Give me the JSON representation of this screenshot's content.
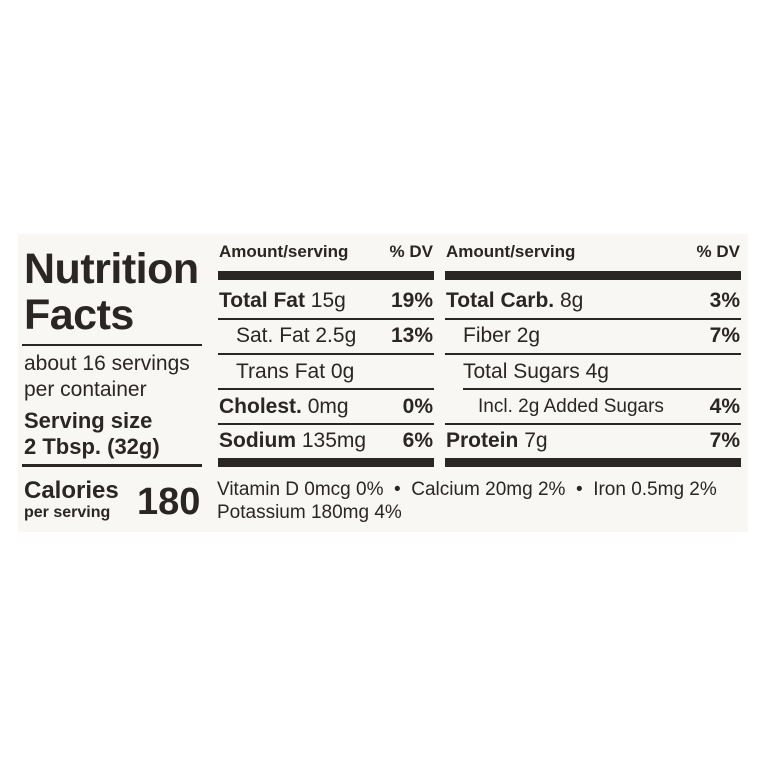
{
  "title_line1": "Nutrition",
  "title_line2": "Facts",
  "servings_line1": "about 16 servings",
  "servings_line2": "per container",
  "serving_size_label": "Serving size",
  "serving_size_value": "2 Tbsp. (32g)",
  "calories_label": "Calories",
  "calories_sub": "per serving",
  "calories_value": "180",
  "left_col": {
    "header_amount": "Amount/serving",
    "header_dv": "% DV",
    "rows": [
      {
        "name": "Total Fat",
        "amount": "15g",
        "dv": "19%"
      },
      {
        "name": "Sat. Fat",
        "amount": "2.5g",
        "dv": "13%"
      },
      {
        "name": "Trans Fat",
        "amount": "0g",
        "dv": ""
      },
      {
        "name": "Cholest.",
        "amount": "0mg",
        "dv": "0%"
      },
      {
        "name": "Sodium",
        "amount": "135mg",
        "dv": "6%"
      }
    ]
  },
  "right_col": {
    "header_amount": "Amount/serving",
    "header_dv": "% DV",
    "rows": [
      {
        "name": "Total Carb.",
        "amount": "8g",
        "dv": "3%"
      },
      {
        "name": "Fiber",
        "amount": "2g",
        "dv": "7%"
      },
      {
        "name": "Total Sugars",
        "amount": "4g",
        "dv": ""
      },
      {
        "name": "Incl. 2g Added Sugars",
        "amount": "",
        "dv": "4%"
      },
      {
        "name": "Protein",
        "amount": "7g",
        "dv": "7%"
      }
    ]
  },
  "vitamins_line1": "Vitamin D 0mcg 0%  •  Calcium 20mg 2%  •  Iron 0.5mg 2%",
  "vitamins_line2": "Potassium 180mg 4%"
}
